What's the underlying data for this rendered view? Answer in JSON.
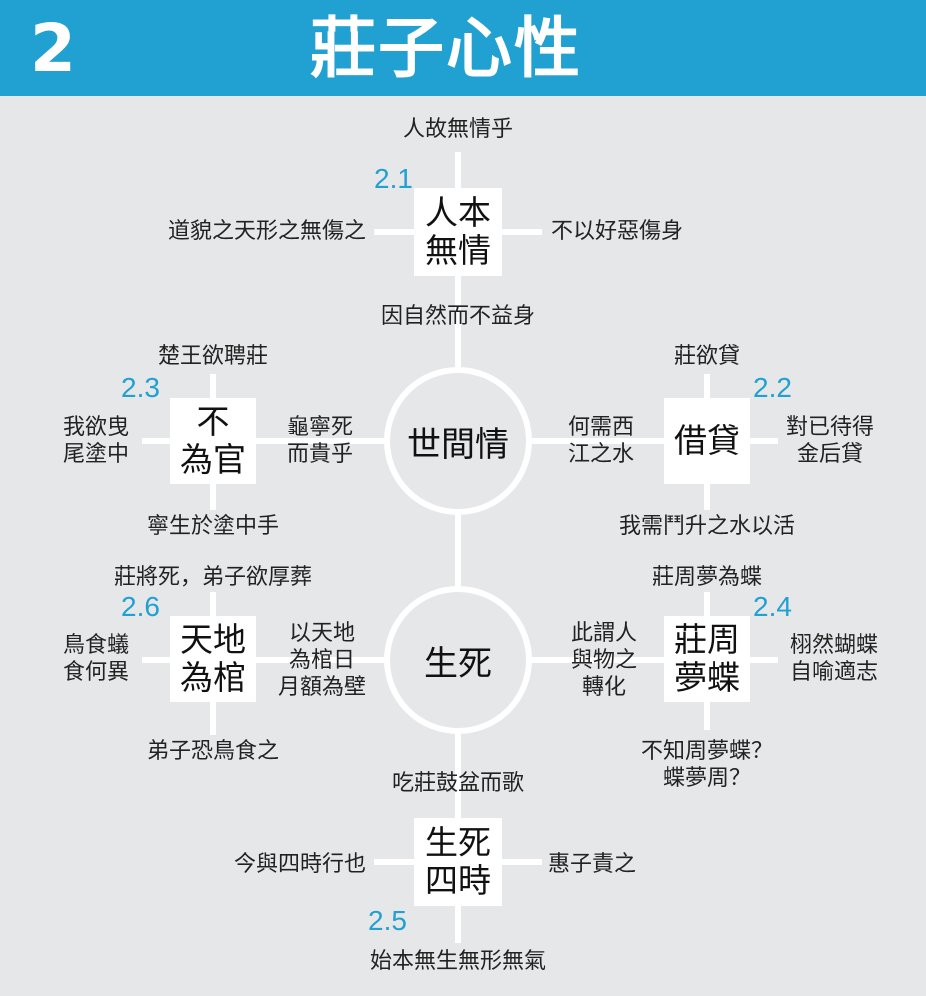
{
  "header": {
    "number": "2",
    "title": "莊子心性"
  },
  "center": {
    "top_circle": "世間情",
    "bottom_circle": "生死"
  },
  "n21": {
    "num": "2.1",
    "box_line1": "人本",
    "box_line2": "無情",
    "top": "人故無情乎",
    "left": "道貌之天形之無傷之",
    "right": "不以好惡傷身",
    "bottom": "因自然而不益身"
  },
  "n22": {
    "num": "2.2",
    "box": "借貸",
    "top": "莊欲貸",
    "left_line1": "何需西",
    "left_line2": "江之水",
    "right_line1": "對已待得",
    "right_line2": "金后貸",
    "bottom": "我需鬥升之水以活"
  },
  "n23": {
    "num": "2.3",
    "box_line1": "不",
    "box_line2": "為官",
    "top": "楚王欲聘莊",
    "left_line1": "我欲曳",
    "left_line2": "尾塗中",
    "right_line1": "龜寧死",
    "right_line2": "而貴乎",
    "bottom": "寧生於塗中手"
  },
  "n24": {
    "num": "2.4",
    "box_line1": "莊周",
    "box_line2": "夢蝶",
    "top": "莊周夢為蝶",
    "left_line1": "此謂人",
    "left_line2": "與物之",
    "left_line3": "轉化",
    "right_line1": "栩然蝴蝶",
    "right_line2": "自喻適志",
    "bottom_line1": "不知周夢蝶？",
    "bottom_line2": "蝶夢周？"
  },
  "n25": {
    "num": "2.5",
    "box_line1": "生死",
    "box_line2": "四時",
    "top": "吃莊鼓盆而歌",
    "left": "今與四時行也",
    "right": "惠子責之",
    "bottom": "始本無生無形無氣"
  },
  "n26": {
    "num": "2.6",
    "box_line1": "天地",
    "box_line2": "為棺",
    "top": "莊將死，弟子欲厚葬",
    "left_line1": "鳥食蟻",
    "left_line2": "食何異",
    "right_line1": "以天地",
    "right_line2": "為棺日",
    "right_line3": "月額為壁",
    "bottom": "弟子恐鳥食之"
  }
}
